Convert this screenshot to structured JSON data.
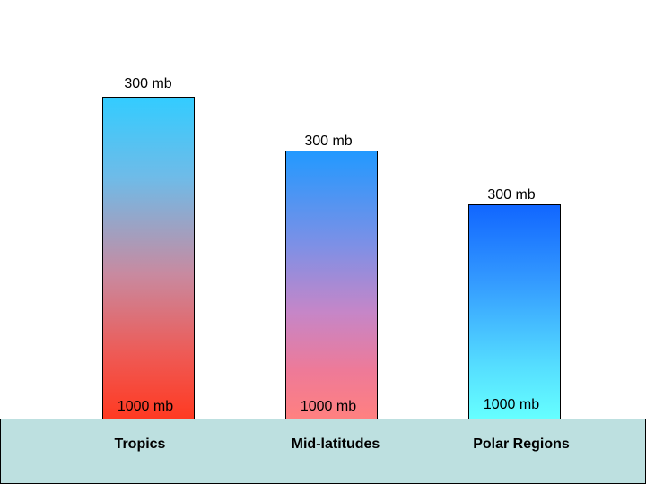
{
  "columns": [
    {
      "region": "Tropics",
      "top_label": "300 mb",
      "bottom_label": "1000 mb",
      "top_color": "#33ccff",
      "bottom_color": "#ff3a22"
    },
    {
      "region": "Mid-latitudes",
      "top_label": "300 mb",
      "bottom_label": "1000 mb",
      "top_color": "#2299ff",
      "bottom_color": "#ff8080"
    },
    {
      "region": "Polar Regions",
      "top_label": "300 mb",
      "bottom_label": "1000 mb",
      "top_color": "#1166ff",
      "bottom_color": "#66ffff"
    }
  ],
  "ground_color": "#bde0e0"
}
